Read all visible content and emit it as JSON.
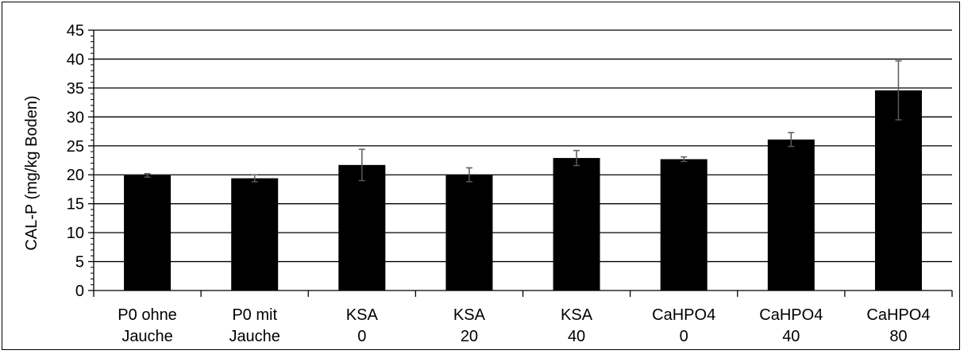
{
  "chart_data": {
    "type": "bar",
    "title": "",
    "xlabel": "",
    "ylabel": "CAL-P (mg/kg Boden)",
    "ylim": [
      0,
      45
    ],
    "yticks": [
      0,
      5,
      10,
      15,
      20,
      25,
      30,
      35,
      40,
      45
    ],
    "grid": true,
    "categories": [
      [
        "P0 ohne",
        "Jauche"
      ],
      [
        "P0 mit",
        "Jauche"
      ],
      [
        "KSA",
        "0"
      ],
      [
        "KSA",
        "20"
      ],
      [
        "KSA",
        "40"
      ],
      [
        "CaHPO4",
        "0"
      ],
      [
        "CaHPO4",
        "40"
      ],
      [
        "CaHPO4",
        "80"
      ]
    ],
    "values": [
      19.9,
      19.4,
      21.7,
      20.0,
      22.9,
      22.7,
      26.1,
      34.6
    ],
    "error": [
      0.3,
      0.6,
      2.7,
      1.2,
      1.3,
      0.4,
      1.2,
      5.1
    ],
    "bar_color": "#000000",
    "error_color": "#595959"
  }
}
